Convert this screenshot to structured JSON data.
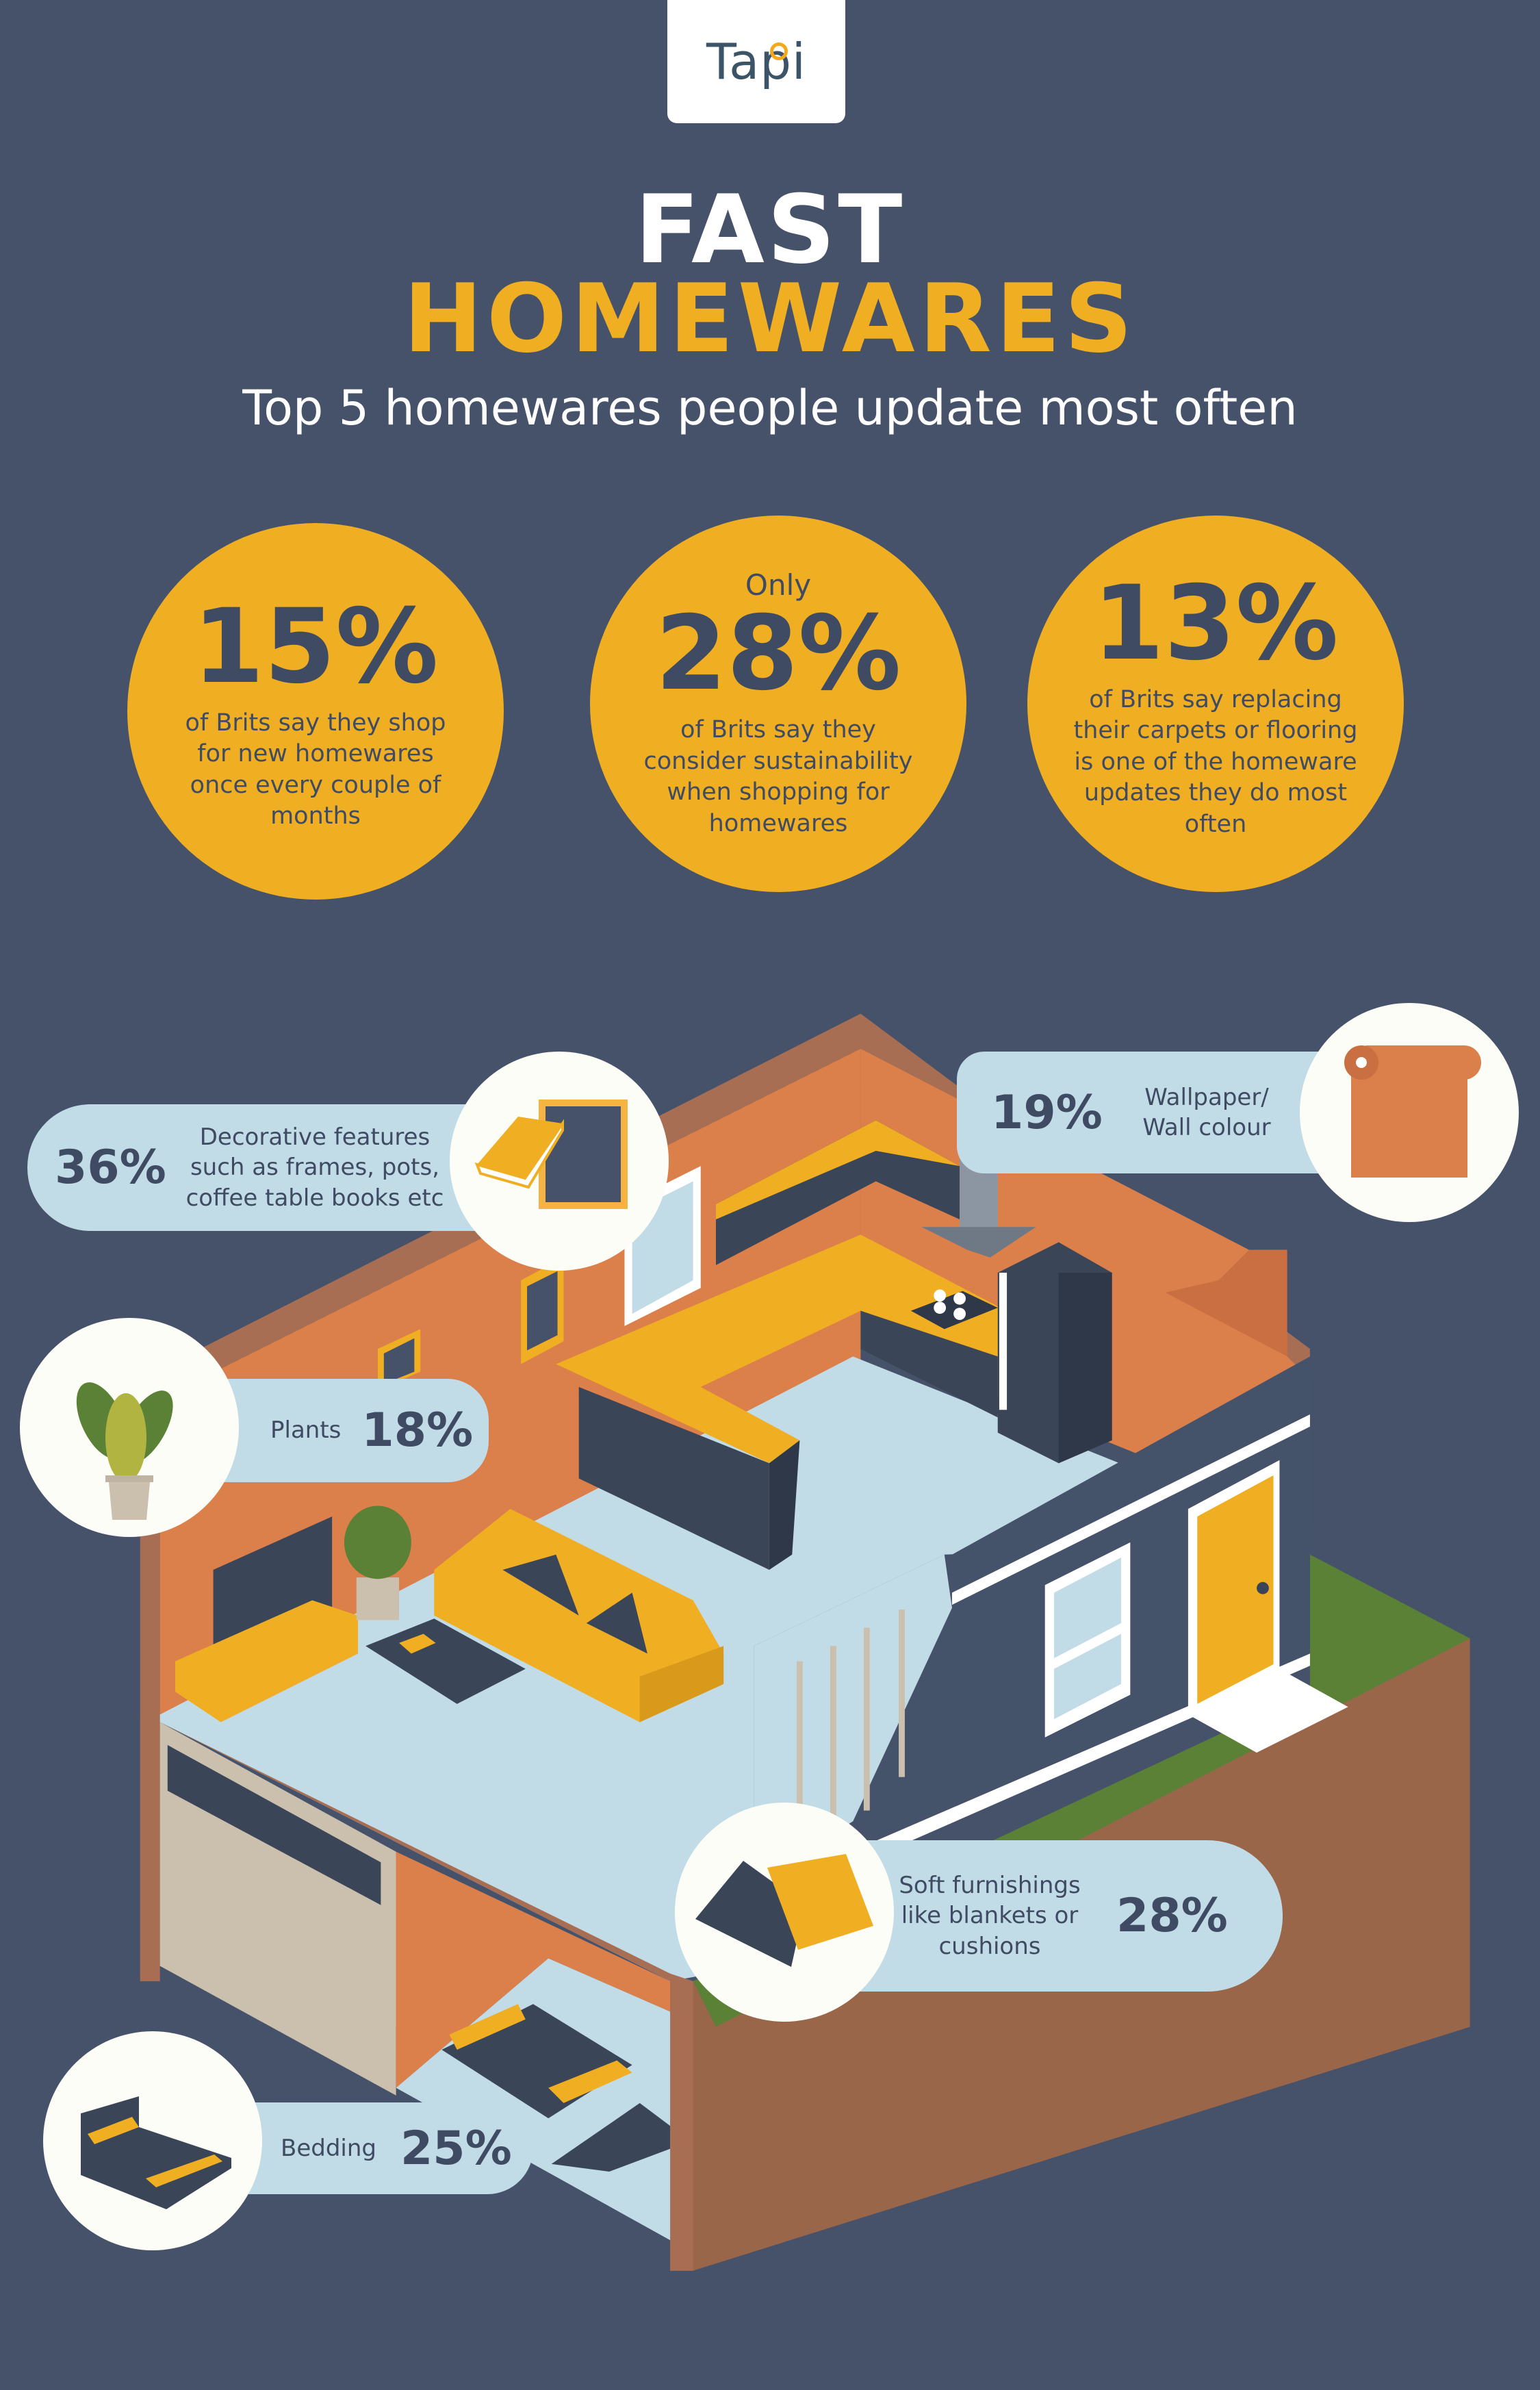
{
  "brand": {
    "logo_text": "Tapi"
  },
  "header": {
    "title_line1": "FAST",
    "title_line2": "HOMEWARES",
    "subtitle": "Top 5 homewares people update most often"
  },
  "stats": [
    {
      "prefix": "",
      "value": "15%",
      "text": "of Brits say they shop for new homewares once every couple of months"
    },
    {
      "prefix": "Only",
      "value": "28%",
      "text": "of Brits say they consider sustainability when shopping for homewares"
    },
    {
      "prefix": "",
      "value": "13%",
      "text": "of Brits say replacing their carpets or flooring is one of the homeware updates they do most often"
    }
  ],
  "callouts": {
    "decorative": {
      "value": "36%",
      "label": "Decorative features such as frames, pots, coffee table books etc",
      "icon": "book-frame-icon"
    },
    "wallpaper": {
      "value": "19%",
      "label": "Wallpaper/ Wall colour",
      "icon": "wallpaper-roll-icon"
    },
    "plants": {
      "value": "18%",
      "label": "Plants",
      "icon": "potted-plant-icon"
    },
    "soft": {
      "value": "28%",
      "label": "Soft furnishings like blankets or cushions",
      "icon": "cushion-blanket-icon"
    },
    "bedding": {
      "value": "25%",
      "label": "Bedding",
      "icon": "bed-icon"
    }
  },
  "colors": {
    "background": "#46526a",
    "accent": "#f0ae22",
    "wall": "#db7f4b",
    "floor": "#c2dce7",
    "text": "#3f4b62"
  }
}
